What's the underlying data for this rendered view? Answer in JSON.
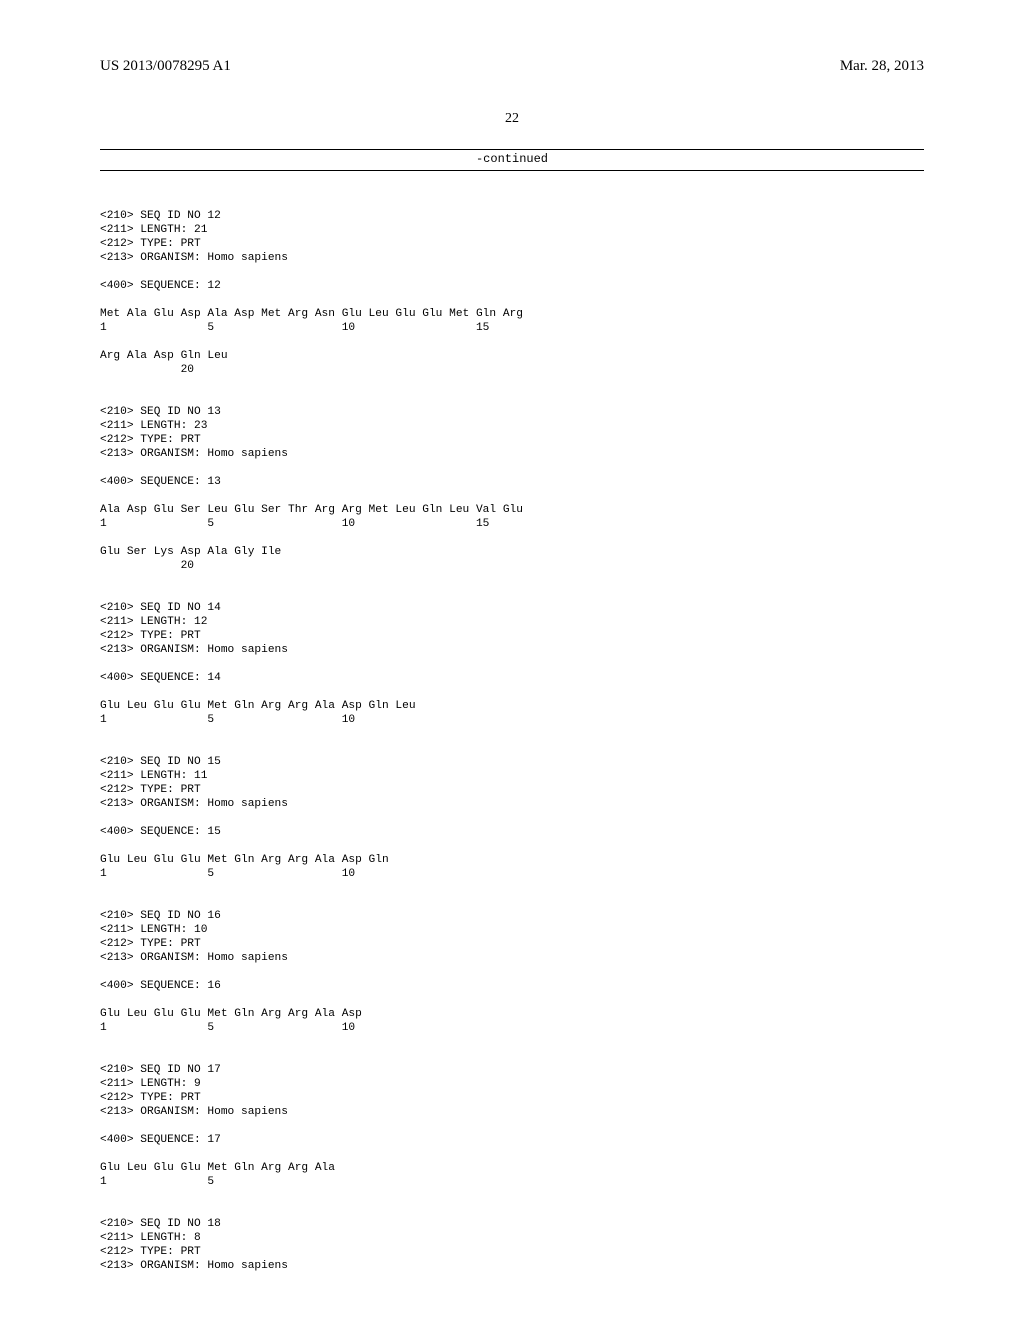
{
  "header": {
    "pub_number": "US 2013/0078295 A1",
    "pub_date": "Mar. 28, 2013"
  },
  "page_number": "22",
  "continued_label": "-continued",
  "sequences": [
    {
      "id_line": "<210> SEQ ID NO 12",
      "length_line": "<211> LENGTH: 21",
      "type_line": "<212> TYPE: PRT",
      "organism_line": "<213> ORGANISM: Homo sapiens",
      "seq_line": "<400> SEQUENCE: 12",
      "rows": [
        "Met Ala Glu Asp Ala Asp Met Arg Asn Glu Leu Glu Glu Met Gln Arg",
        "1               5                   10                  15",
        "",
        "Arg Ala Asp Gln Leu",
        "            20"
      ]
    },
    {
      "id_line": "<210> SEQ ID NO 13",
      "length_line": "<211> LENGTH: 23",
      "type_line": "<212> TYPE: PRT",
      "organism_line": "<213> ORGANISM: Homo sapiens",
      "seq_line": "<400> SEQUENCE: 13",
      "rows": [
        "Ala Asp Glu Ser Leu Glu Ser Thr Arg Arg Met Leu Gln Leu Val Glu",
        "1               5                   10                  15",
        "",
        "Glu Ser Lys Asp Ala Gly Ile",
        "            20"
      ]
    },
    {
      "id_line": "<210> SEQ ID NO 14",
      "length_line": "<211> LENGTH: 12",
      "type_line": "<212> TYPE: PRT",
      "organism_line": "<213> ORGANISM: Homo sapiens",
      "seq_line": "<400> SEQUENCE: 14",
      "rows": [
        "Glu Leu Glu Glu Met Gln Arg Arg Ala Asp Gln Leu",
        "1               5                   10"
      ]
    },
    {
      "id_line": "<210> SEQ ID NO 15",
      "length_line": "<211> LENGTH: 11",
      "type_line": "<212> TYPE: PRT",
      "organism_line": "<213> ORGANISM: Homo sapiens",
      "seq_line": "<400> SEQUENCE: 15",
      "rows": [
        "Glu Leu Glu Glu Met Gln Arg Arg Ala Asp Gln",
        "1               5                   10"
      ]
    },
    {
      "id_line": "<210> SEQ ID NO 16",
      "length_line": "<211> LENGTH: 10",
      "type_line": "<212> TYPE: PRT",
      "organism_line": "<213> ORGANISM: Homo sapiens",
      "seq_line": "<400> SEQUENCE: 16",
      "rows": [
        "Glu Leu Glu Glu Met Gln Arg Arg Ala Asp",
        "1               5                   10"
      ]
    },
    {
      "id_line": "<210> SEQ ID NO 17",
      "length_line": "<211> LENGTH: 9",
      "type_line": "<212> TYPE: PRT",
      "organism_line": "<213> ORGANISM: Homo sapiens",
      "seq_line": "<400> SEQUENCE: 17",
      "rows": [
        "Glu Leu Glu Glu Met Gln Arg Arg Ala",
        "1               5"
      ]
    },
    {
      "id_line": "<210> SEQ ID NO 18",
      "length_line": "<211> LENGTH: 8",
      "type_line": "<212> TYPE: PRT",
      "organism_line": "<213> ORGANISM: Homo sapiens",
      "seq_line": "",
      "rows": []
    }
  ]
}
